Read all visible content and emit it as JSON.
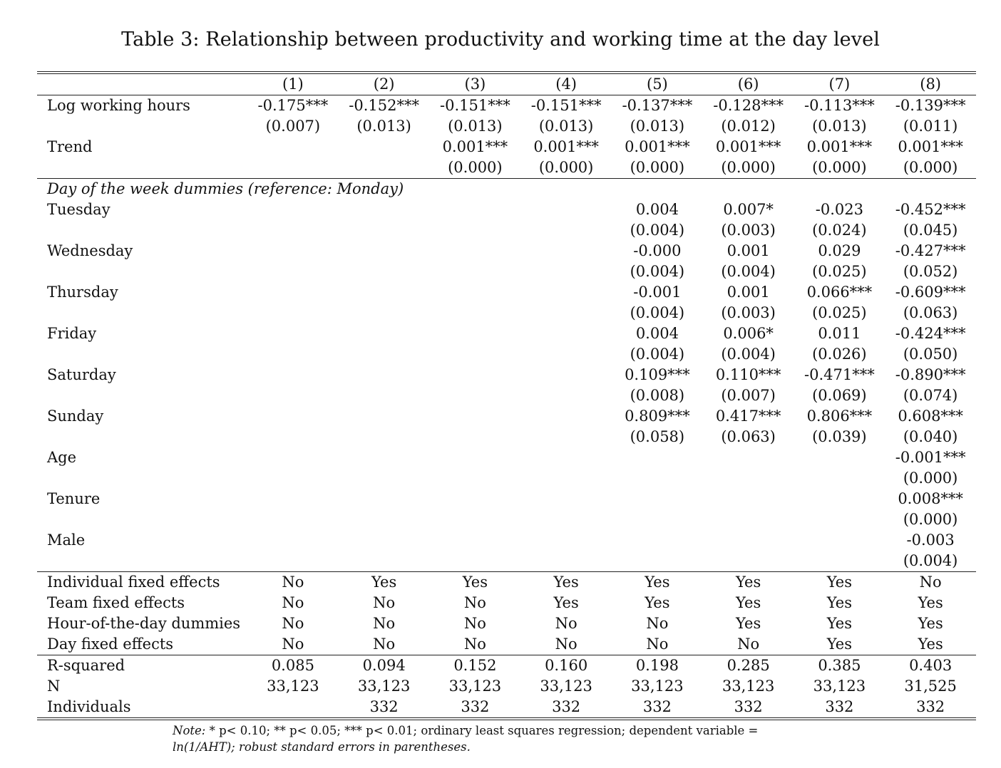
{
  "title": "Table 3: Relationship between productivity and working time at the day level",
  "columns": [
    "(1)",
    "(2)",
    "(3)",
    "(4)",
    "(5)",
    "(6)",
    "(7)",
    "(8)"
  ],
  "rows_top": [
    {
      "label": "Log working hours",
      "values": [
        "-0.175***",
        "-0.152***",
        "-0.151***",
        "-0.151***",
        "-0.137***",
        "-0.128***",
        "-0.113***",
        "-0.139***"
      ]
    },
    {
      "label": "",
      "values": [
        "(0.007)",
        "(0.013)",
        "(0.013)",
        "(0.013)",
        "(0.013)",
        "(0.012)",
        "(0.013)",
        "(0.011)"
      ]
    },
    {
      "label": "Trend",
      "values": [
        "",
        "",
        "0.001***",
        "0.001***",
        "0.001***",
        "0.001***",
        "0.001***",
        "0.001***"
      ]
    },
    {
      "label": "",
      "values": [
        "",
        "",
        "(0.000)",
        "(0.000)",
        "(0.000)",
        "(0.000)",
        "(0.000)",
        "(0.000)"
      ]
    }
  ],
  "section_heading": "Day of the week dummies (reference: Monday)",
  "rows_days": [
    {
      "label": "Tuesday",
      "values": [
        "",
        "",
        "",
        "",
        "0.004",
        "0.007*",
        "-0.023",
        "-0.452***"
      ]
    },
    {
      "label": "",
      "values": [
        "",
        "",
        "",
        "",
        "(0.004)",
        "(0.003)",
        "(0.024)",
        "(0.045)"
      ]
    },
    {
      "label": "Wednesday",
      "values": [
        "",
        "",
        "",
        "",
        "-0.000",
        "0.001",
        "0.029",
        "-0.427***"
      ]
    },
    {
      "label": "",
      "values": [
        "",
        "",
        "",
        "",
        "(0.004)",
        "(0.004)",
        "(0.025)",
        "(0.052)"
      ]
    },
    {
      "label": "Thursday",
      "values": [
        "",
        "",
        "",
        "",
        "-0.001",
        "0.001",
        "0.066***",
        "-0.609***"
      ]
    },
    {
      "label": "",
      "values": [
        "",
        "",
        "",
        "",
        "(0.004)",
        "(0.003)",
        "(0.025)",
        "(0.063)"
      ]
    },
    {
      "label": "Friday",
      "values": [
        "",
        "",
        "",
        "",
        "0.004",
        "0.006*",
        "0.011",
        "-0.424***"
      ]
    },
    {
      "label": "",
      "values": [
        "",
        "",
        "",
        "",
        "(0.004)",
        "(0.004)",
        "(0.026)",
        "(0.050)"
      ]
    },
    {
      "label": "Saturday",
      "values": [
        "",
        "",
        "",
        "",
        "0.109***",
        "0.110***",
        "-0.471***",
        "-0.890***"
      ]
    },
    {
      "label": "",
      "values": [
        "",
        "",
        "",
        "",
        "(0.008)",
        "(0.007)",
        "(0.069)",
        "(0.074)"
      ]
    },
    {
      "label": "Sunday",
      "values": [
        "",
        "",
        "",
        "",
        "0.809***",
        "0.417***",
        "0.806***",
        "0.608***"
      ]
    },
    {
      "label": "",
      "values": [
        "",
        "",
        "",
        "",
        "(0.058)",
        "(0.063)",
        "(0.039)",
        "(0.040)"
      ]
    },
    {
      "label": "Age",
      "values": [
        "",
        "",
        "",
        "",
        "",
        "",
        "",
        "-0.001***"
      ]
    },
    {
      "label": "",
      "values": [
        "",
        "",
        "",
        "",
        "",
        "",
        "",
        "(0.000)"
      ]
    },
    {
      "label": "Tenure",
      "values": [
        "",
        "",
        "",
        "",
        "",
        "",
        "",
        "0.008***"
      ]
    },
    {
      "label": "",
      "values": [
        "",
        "",
        "",
        "",
        "",
        "",
        "",
        "(0.000)"
      ]
    },
    {
      "label": "Male",
      "values": [
        "",
        "",
        "",
        "",
        "",
        "",
        "",
        "-0.003"
      ]
    },
    {
      "label": "",
      "values": [
        "",
        "",
        "",
        "",
        "",
        "",
        "",
        "(0.004)"
      ]
    }
  ],
  "rows_effects": [
    {
      "label": "Individual fixed effects",
      "values": [
        "No",
        "Yes",
        "Yes",
        "Yes",
        "Yes",
        "Yes",
        "Yes",
        "No"
      ]
    },
    {
      "label": "Team fixed effects",
      "values": [
        "No",
        "No",
        "No",
        "Yes",
        "Yes",
        "Yes",
        "Yes",
        "Yes"
      ]
    },
    {
      "label": "Hour-of-the-day dummies",
      "values": [
        "No",
        "No",
        "No",
        "No",
        "No",
        "Yes",
        "Yes",
        "Yes"
      ]
    },
    {
      "label": "Day fixed effects",
      "values": [
        "No",
        "No",
        "No",
        "No",
        "No",
        "No",
        "Yes",
        "Yes"
      ]
    }
  ],
  "rows_stats": [
    {
      "label": "R-squared",
      "values": [
        "0.085",
        "0.094",
        "0.152",
        "0.160",
        "0.198",
        "0.285",
        "0.385",
        "0.403"
      ]
    },
    {
      "label": "N",
      "values": [
        "33,123",
        "33,123",
        "33,123",
        "33,123",
        "33,123",
        "33,123",
        "33,123",
        "31,525"
      ]
    },
    {
      "label": "Individuals",
      "values": [
        "",
        "332",
        "332",
        "332",
        "332",
        "332",
        "332",
        "332"
      ]
    }
  ],
  "note": {
    "label": "Note:",
    "line1": "* p< 0.10; ** p< 0.05; *** p< 0.01; ordinary least squares regression; dependent variable =",
    "line2": "ln(1/AHT); robust standard errors in parentheses."
  }
}
